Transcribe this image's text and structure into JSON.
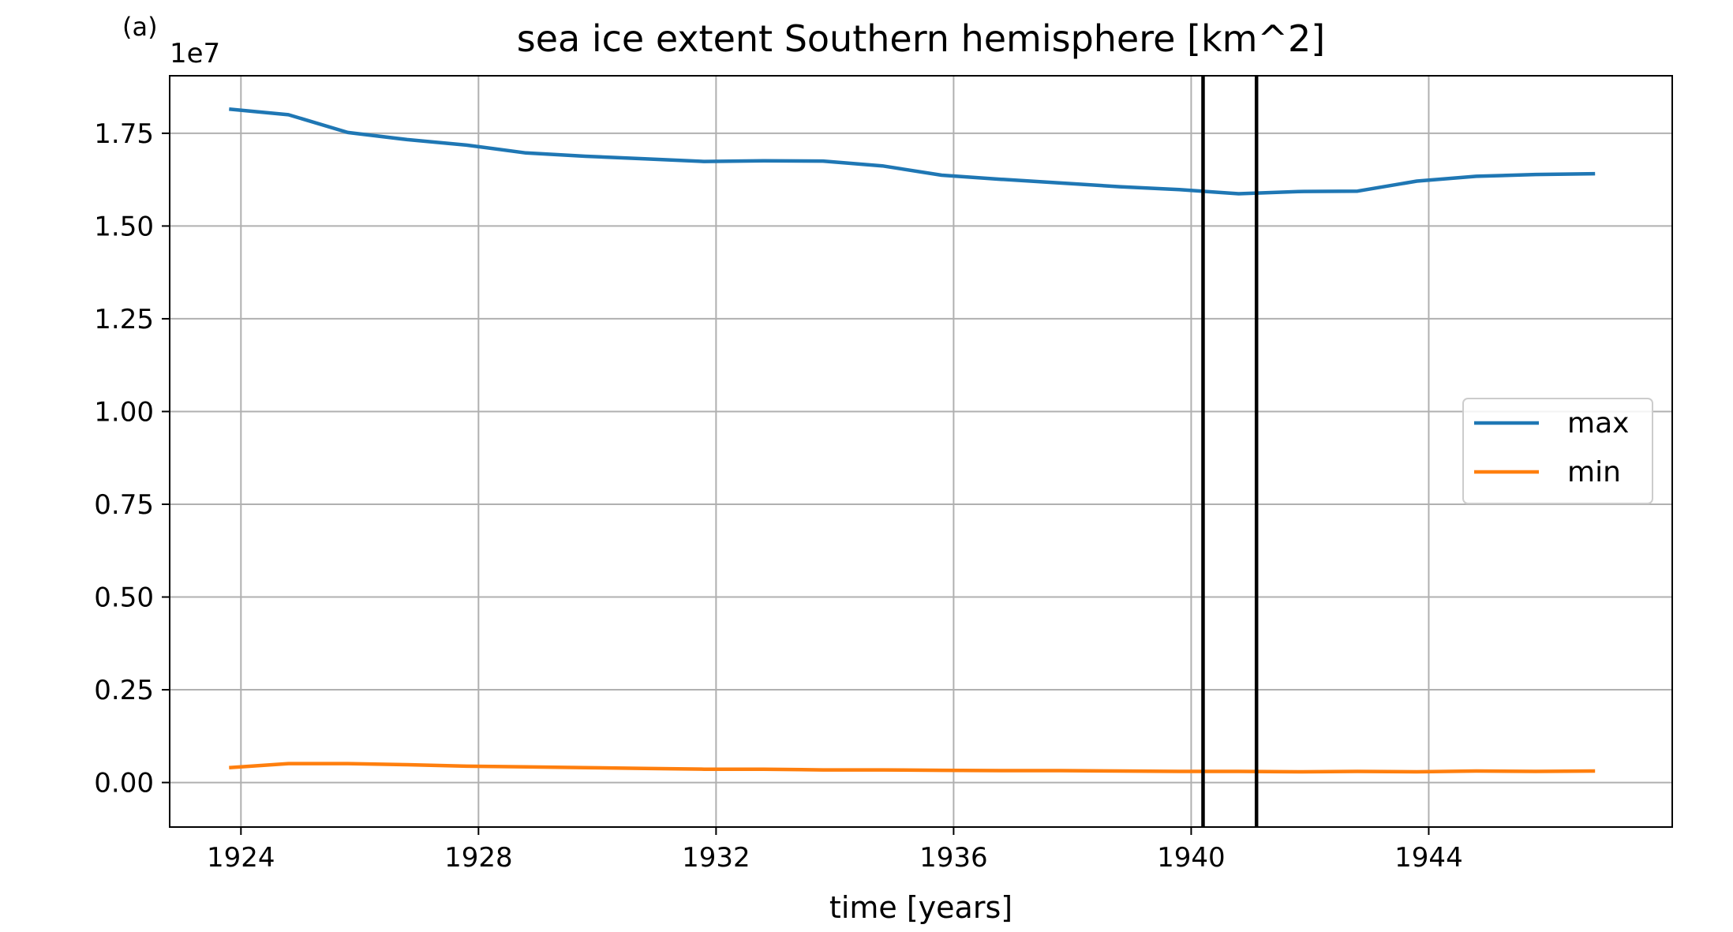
{
  "panel_label": "(a)",
  "chart_data": {
    "type": "line",
    "title": "sea ice extent Southern hemisphere [km^2]",
    "xlabel": "time [years]",
    "ylabel": "",
    "y_offset_label": "1e7",
    "xlim": [
      1922.8,
      1948.1
    ],
    "ylim": [
      -0.12,
      1.905
    ],
    "y_scale_note": "values in units of 1e7 km^2",
    "xticks": [
      1924,
      1928,
      1932,
      1936,
      1940,
      1944
    ],
    "xtick_labels": [
      "1924",
      "1928",
      "1932",
      "1936",
      "1940",
      "1944"
    ],
    "yticks": [
      0.0,
      0.25,
      0.5,
      0.75,
      1.0,
      1.25,
      1.5,
      1.75
    ],
    "ytick_labels": [
      "0.00",
      "0.25",
      "0.50",
      "0.75",
      "1.00",
      "1.25",
      "1.50",
      "1.75"
    ],
    "grid": true,
    "legend_position": "right",
    "x": [
      1923.8,
      1924.8,
      1925.8,
      1926.8,
      1927.8,
      1928.8,
      1929.8,
      1930.8,
      1931.8,
      1932.8,
      1933.8,
      1934.8,
      1935.8,
      1936.8,
      1937.8,
      1938.8,
      1939.8,
      1940.8,
      1941.8,
      1942.8,
      1943.8,
      1944.8,
      1945.8,
      1946.8
    ],
    "series": [
      {
        "name": "max",
        "color": "#1f77b4",
        "values": [
          1.815,
          1.8,
          1.752,
          1.733,
          1.718,
          1.697,
          1.688,
          1.681,
          1.674,
          1.676,
          1.675,
          1.662,
          1.637,
          1.626,
          1.616,
          1.606,
          1.598,
          1.587,
          1.593,
          1.594,
          1.621,
          1.634,
          1.639,
          1.641
        ]
      },
      {
        "name": "min",
        "color": "#ff7f0e",
        "values": [
          0.04,
          0.051,
          0.051,
          0.048,
          0.044,
          0.042,
          0.04,
          0.038,
          0.036,
          0.036,
          0.034,
          0.034,
          0.033,
          0.032,
          0.032,
          0.031,
          0.03,
          0.03,
          0.029,
          0.03,
          0.029,
          0.031,
          0.03,
          0.031
        ]
      }
    ],
    "vlines": [
      1940.2,
      1941.1
    ],
    "vline_color": "#000000"
  }
}
